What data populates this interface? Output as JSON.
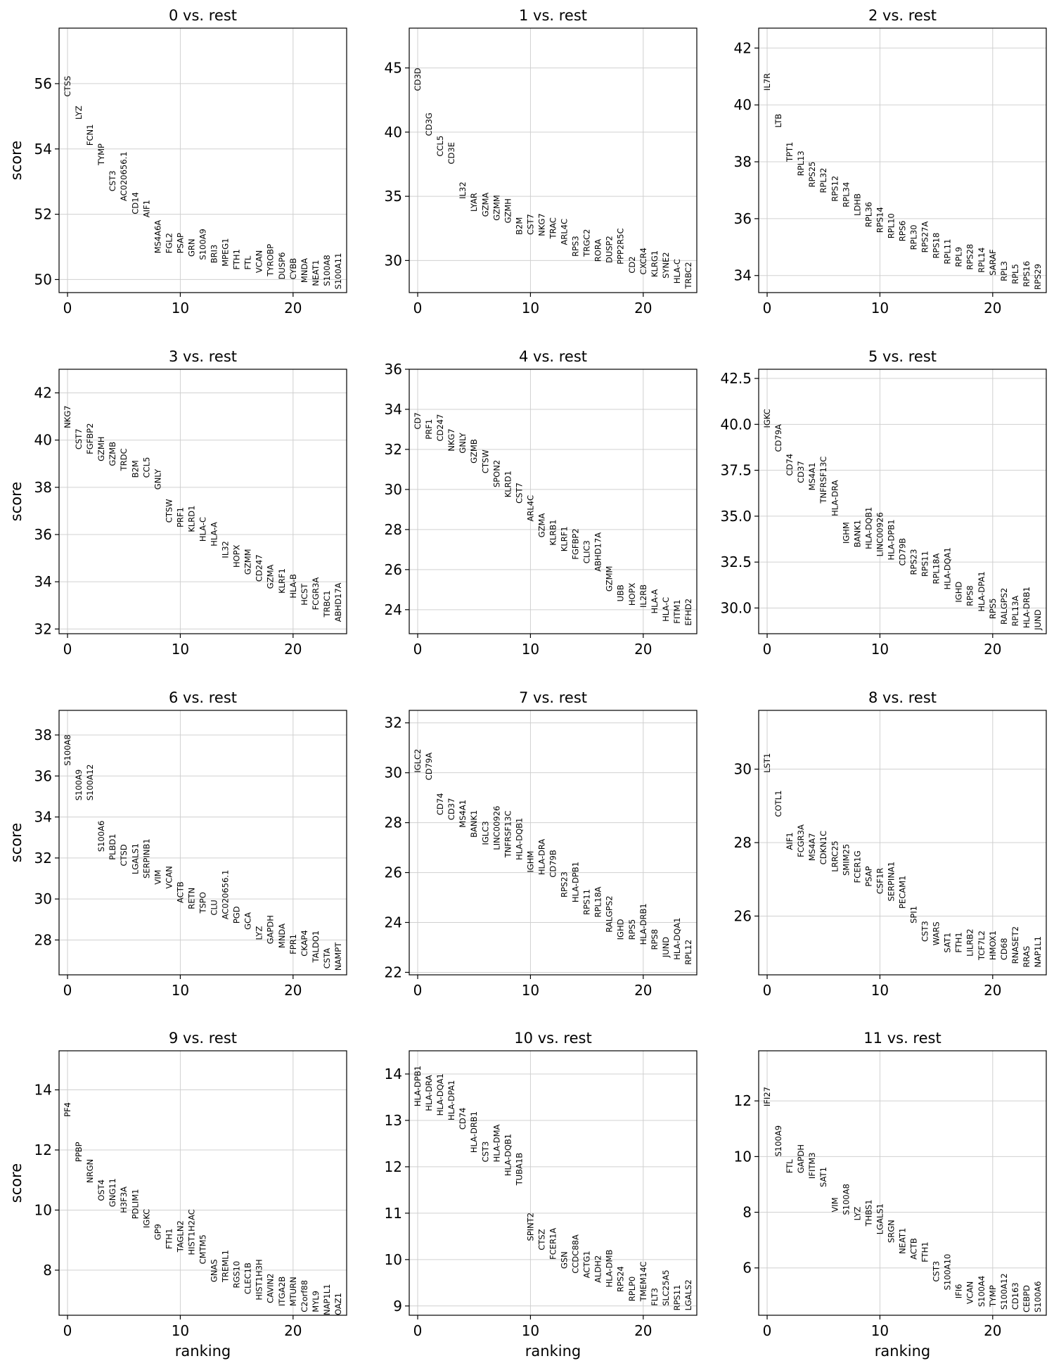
{
  "colors": {
    "grid": "#d0d0d0",
    "axis": "#000000",
    "text": "#000000",
    "background": "#ffffff"
  },
  "chart_data": [
    {
      "type": "scatter",
      "title": "0 vs. rest",
      "xlabel": "",
      "ylabel": "score",
      "xlim": [
        -0.75,
        24.75
      ],
      "ylim": [
        49.6,
        57.7
      ],
      "xticks": [
        0,
        10,
        20
      ],
      "yticks": [
        50,
        52,
        54,
        56
      ],
      "grid": true,
      "genes": [
        "CTSS",
        "LYZ",
        "FCN1",
        "TYMP",
        "CST3",
        "AC020656.1",
        "CD14",
        "AIF1",
        "MS4A6A",
        "FGL2",
        "PSAP",
        "GRN",
        "S100A9",
        "BRI3",
        "MPEG1",
        "FTH1",
        "FTL",
        "VCAN",
        "TYROBP",
        "DUSP6",
        "CYBB",
        "MNDA",
        "NEAT1",
        "S100A8",
        "S100A11"
      ],
      "scores": [
        55.6,
        54.9,
        54.1,
        53.5,
        52.7,
        52.4,
        52.0,
        51.9,
        50.8,
        50.8,
        50.8,
        50.7,
        50.6,
        50.5,
        50.4,
        50.3,
        50.3,
        50.2,
        50.1,
        50.0,
        50.0,
        49.9,
        49.8,
        49.8,
        49.7
      ]
    },
    {
      "type": "scatter",
      "title": "1 vs. rest",
      "xlabel": "",
      "ylabel": "",
      "xlim": [
        -0.75,
        24.75
      ],
      "ylim": [
        27.5,
        48.1
      ],
      "xticks": [
        0,
        10,
        20
      ],
      "yticks": [
        30,
        35,
        40,
        45
      ],
      "grid": true,
      "genes": [
        "CD3D",
        "CD3G",
        "CCL5",
        "CD3E",
        "IL32",
        "LYAR",
        "GZMA",
        "GZMM",
        "GZMH",
        "B2M",
        "CST7",
        "NKG7",
        "TRAC",
        "ARL4C",
        "RPS3",
        "TRGC2",
        "RORA",
        "DUSP2",
        "PPP2R5C",
        "CD2",
        "CXCR4",
        "KLRG1",
        "SYNE2",
        "HLA-C",
        "TRBC2"
      ],
      "scores": [
        43.2,
        39.7,
        38.1,
        37.5,
        34.8,
        33.8,
        33.4,
        33.1,
        32.9,
        32.0,
        32.0,
        31.9,
        31.7,
        31.2,
        30.3,
        30.3,
        29.9,
        29.8,
        29.7,
        29.0,
        28.9,
        28.7,
        28.6,
        28.2,
        27.8
      ]
    },
    {
      "type": "scatter",
      "title": "2 vs. rest",
      "xlabel": "",
      "ylabel": "",
      "xlim": [
        -0.75,
        24.75
      ],
      "ylim": [
        33.4,
        42.7
      ],
      "xticks": [
        0,
        10,
        20
      ],
      "yticks": [
        34,
        36,
        38,
        40,
        42
      ],
      "grid": true,
      "genes": [
        "IL7R",
        "LTB",
        "TPT1",
        "RPL13",
        "RPS25",
        "RPL32",
        "RPS12",
        "RPL34",
        "LDHB",
        "RPL36",
        "RPS14",
        "RPL10",
        "RPS6",
        "RPL30",
        "RPS27A",
        "RPS18",
        "RPL11",
        "RPL9",
        "RPS28",
        "RPL14",
        "SARAF",
        "RPL3",
        "RPL5",
        "RPS16",
        "RPS29"
      ],
      "scores": [
        40.5,
        39.2,
        38.0,
        37.5,
        37.1,
        36.9,
        36.6,
        36.4,
        36.1,
        35.7,
        35.5,
        35.3,
        35.2,
        34.9,
        34.8,
        34.6,
        34.4,
        34.3,
        34.2,
        34.1,
        34.0,
        33.8,
        33.7,
        33.6,
        33.5
      ]
    },
    {
      "type": "scatter",
      "title": "3 vs. rest",
      "xlabel": "",
      "ylabel": "score",
      "xlim": [
        -0.75,
        24.75
      ],
      "ylim": [
        31.8,
        43.0
      ],
      "xticks": [
        0,
        10,
        20
      ],
      "yticks": [
        32,
        34,
        36,
        38,
        40,
        42
      ],
      "grid": true,
      "genes": [
        "NKG7",
        "CST7",
        "FGFBP2",
        "GZMH",
        "GZMB",
        "TRDC",
        "B2M",
        "CCL5",
        "GNLY",
        "CTSW",
        "PRF1",
        "KLRD1",
        "HLA-C",
        "HLA-A",
        "IL32",
        "HOPX",
        "GZMM",
        "CD247",
        "GZMA",
        "KLRF1",
        "HLA-B",
        "HCST",
        "FCGR3A",
        "TRBC1",
        "ABHD17A"
      ],
      "scores": [
        40.5,
        39.6,
        39.4,
        39.1,
        38.9,
        38.7,
        38.4,
        38.4,
        37.9,
        36.5,
        36.3,
        36.1,
        35.7,
        35.5,
        35.0,
        34.6,
        34.3,
        34.0,
        33.7,
        33.5,
        33.3,
        33.0,
        32.8,
        32.5,
        32.3
      ]
    },
    {
      "type": "scatter",
      "title": "4 vs. rest",
      "xlabel": "",
      "ylabel": "",
      "xlim": [
        -0.75,
        24.75
      ],
      "ylim": [
        22.8,
        36.0
      ],
      "xticks": [
        0,
        10,
        20
      ],
      "yticks": [
        24,
        26,
        28,
        30,
        32,
        34,
        36
      ],
      "grid": true,
      "genes": [
        "CD7",
        "PRF1",
        "CD247",
        "NKG7",
        "GNLY",
        "GZMB",
        "CTSW",
        "SPON2",
        "KLRD1",
        "CST7",
        "ARL4C",
        "GZMA",
        "KLRB1",
        "KLRF1",
        "FGFBP2",
        "CLIC3",
        "ABHD17A",
        "GZMM",
        "UBB",
        "HOPX",
        "IL2RB",
        "HLA-A",
        "HLA-C",
        "FITM1",
        "EFHD2"
      ],
      "scores": [
        33.0,
        32.5,
        32.4,
        31.9,
        31.8,
        31.3,
        30.8,
        30.1,
        29.6,
        29.3,
        28.4,
        27.6,
        27.2,
        26.9,
        26.5,
        26.3,
        25.9,
        24.9,
        24.4,
        24.2,
        24.1,
        23.8,
        23.4,
        23.3,
        23.2
      ]
    },
    {
      "type": "scatter",
      "title": "5 vs. rest",
      "xlabel": "",
      "ylabel": "",
      "xlim": [
        -0.75,
        24.75
      ],
      "ylim": [
        28.6,
        43.0
      ],
      "xticks": [
        0,
        10,
        20
      ],
      "yticks": [
        30.0,
        32.5,
        35.0,
        37.5,
        40.0,
        42.5
      ],
      "grid": true,
      "genes": [
        "IGKC",
        "CD79A",
        "CD74",
        "CD37",
        "MS4A1",
        "TNFRSF13C",
        "HLA-DRA",
        "IGHM",
        "BANK1",
        "HLA-DQB1",
        "LINC00926",
        "HLA-DPB1",
        "CD79B",
        "RPS23",
        "RPS11",
        "RPL18A",
        "HLA-DQA1",
        "IGHD",
        "RPS8",
        "HLA-DPA1",
        "RPS5",
        "RALGPS2",
        "RPL13A",
        "HLA-DRB1",
        "JUND"
      ],
      "scores": [
        39.8,
        38.5,
        37.2,
        36.8,
        36.4,
        35.7,
        35.0,
        33.5,
        33.3,
        33.2,
        32.8,
        32.6,
        32.3,
        31.8,
        31.7,
        31.3,
        31.0,
        30.3,
        30.1,
        29.8,
        29.4,
        29.1,
        29.0,
        28.9,
        28.8
      ]
    },
    {
      "type": "scatter",
      "title": "6 vs. rest",
      "xlabel": "",
      "ylabel": "score",
      "xlim": [
        -0.75,
        24.75
      ],
      "ylim": [
        26.3,
        39.2
      ],
      "xticks": [
        0,
        10,
        20
      ],
      "yticks": [
        28,
        30,
        32,
        34,
        36,
        38
      ],
      "grid": true,
      "genes": [
        "S100A8",
        "S100A9",
        "S100A12",
        "S100A6",
        "PLBD1",
        "CTSD",
        "LGALS1",
        "SERPINB1",
        "VIM",
        "VCAN",
        "ACTB",
        "RETN",
        "TSPO",
        "CLU",
        "AC020656.1",
        "PGD",
        "GCA",
        "LYZ",
        "GAPDH",
        "MNDA",
        "FPR1",
        "CKAP4",
        "TALDO1",
        "CSTA",
        "NAMPT"
      ],
      "scores": [
        36.5,
        34.8,
        34.8,
        32.3,
        31.9,
        31.6,
        31.2,
        31.0,
        30.7,
        30.5,
        29.8,
        29.5,
        29.3,
        29.2,
        29.0,
        28.8,
        28.5,
        28.0,
        27.8,
        27.6,
        27.3,
        27.2,
        26.9,
        26.6,
        26.5
      ]
    },
    {
      "type": "scatter",
      "title": "7 vs. rest",
      "xlabel": "",
      "ylabel": "",
      "xlim": [
        -0.75,
        24.75
      ],
      "ylim": [
        21.9,
        32.5
      ],
      "xticks": [
        0,
        10,
        20
      ],
      "yticks": [
        22,
        24,
        26,
        28,
        30,
        32
      ],
      "grid": true,
      "genes": [
        "IGLC2",
        "CD79A",
        "CD74",
        "CD37",
        "MS4A1",
        "BANK1",
        "IGLC3",
        "LINC00926",
        "TNFRSF13C",
        "HLA-DQB1",
        "IGHM",
        "HLA-DRA",
        "CD79B",
        "RPS23",
        "HLA-DPB1",
        "RPS11",
        "RPL18A",
        "RALGPS2",
        "IGHD",
        "RPS5",
        "HLA-DRB1",
        "RPS8",
        "JUND",
        "HLA-DQA1",
        "RPL12"
      ],
      "scores": [
        30.0,
        29.7,
        28.3,
        28.1,
        27.8,
        27.4,
        27.1,
        26.9,
        26.6,
        26.5,
        26.0,
        25.9,
        25.8,
        25.0,
        24.8,
        24.3,
        24.2,
        23.6,
        23.3,
        23.3,
        23.1,
        22.9,
        22.6,
        22.5,
        22.3
      ]
    },
    {
      "type": "scatter",
      "title": "8 vs. rest",
      "xlabel": "",
      "ylabel": "",
      "xlim": [
        -0.75,
        24.75
      ],
      "ylim": [
        24.4,
        31.6
      ],
      "xticks": [
        0,
        10,
        20
      ],
      "yticks": [
        26,
        28,
        30
      ],
      "grid": true,
      "genes": [
        "LST1",
        "COTL1",
        "AIF1",
        "FCGR3A",
        "MS4A7",
        "CDKN1C",
        "LRRC25",
        "SMIM25",
        "FCER1G",
        "PSAP",
        "CSF1R",
        "SERPINA1",
        "PECAM1",
        "SPI1",
        "CST3",
        "WARS",
        "SAT1",
        "FTH1",
        "LILRB2",
        "TCF7L2",
        "HMOX1",
        "CD68",
        "RNASET2",
        "RRAS",
        "NAP1L1"
      ],
      "scores": [
        29.9,
        28.7,
        27.8,
        27.6,
        27.5,
        27.4,
        27.2,
        27.1,
        26.9,
        26.8,
        26.6,
        26.4,
        26.2,
        25.8,
        25.3,
        25.2,
        25.0,
        25.0,
        24.9,
        24.8,
        24.8,
        24.8,
        24.7,
        24.6,
        24.6
      ]
    },
    {
      "type": "scatter",
      "title": "9 vs. rest",
      "xlabel": "ranking",
      "ylabel": "score",
      "xlim": [
        -0.75,
        24.75
      ],
      "ylim": [
        6.5,
        15.3
      ],
      "xticks": [
        0,
        10,
        20
      ],
      "yticks": [
        8,
        10,
        12,
        14
      ],
      "grid": true,
      "genes": [
        "PF4",
        "PPBP",
        "NRGN",
        "OST4",
        "GNG11",
        "H3F3A",
        "PDLIM1",
        "IGKC",
        "GP9",
        "FTH1",
        "TAGLN2",
        "HIST1H2AC",
        "CMTM5",
        "GNAS",
        "TREML1",
        "RGS10",
        "CLEC1B",
        "HIST1H3H",
        "CAVIN2",
        "ITGA2B",
        "MTURN",
        "C2orf88",
        "MYL9",
        "NAP1L1",
        "OAZ1"
      ],
      "scores": [
        13.1,
        11.6,
        10.9,
        10.3,
        10.1,
        9.9,
        9.7,
        9.4,
        9.0,
        8.7,
        8.6,
        8.5,
        8.2,
        7.6,
        7.6,
        7.4,
        7.2,
        7.0,
        6.9,
        6.8,
        6.8,
        6.6,
        6.6,
        6.5,
        6.5
      ]
    },
    {
      "type": "scatter",
      "title": "10 vs. rest",
      "xlabel": "ranking",
      "ylabel": "",
      "xlim": [
        -0.75,
        24.75
      ],
      "ylim": [
        8.8,
        14.5
      ],
      "xticks": [
        0,
        10,
        20
      ],
      "yticks": [
        9,
        10,
        11,
        12,
        13,
        14
      ],
      "grid": true,
      "genes": [
        "HLA-DPB1",
        "HLA-DRA",
        "HLA-DQA1",
        "HLA-DPA1",
        "CD74",
        "HLA-DRB1",
        "CST3",
        "HLA-DMA",
        "HLA-DQB1",
        "TUBA1B",
        "SPINT2",
        "CTSZ",
        "FCER1A",
        "GSN",
        "CCDC88A",
        "ACTG1",
        "ALDH2",
        "HLA-DMB",
        "RPS24",
        "RPLP0",
        "TMEM14C",
        "FLT3",
        "SLC25A5",
        "RPS11",
        "LGALS2"
      ],
      "scores": [
        13.3,
        13.2,
        13.1,
        13.0,
        12.8,
        12.3,
        12.1,
        12.1,
        11.8,
        11.6,
        10.4,
        10.2,
        10.0,
        9.8,
        9.7,
        9.6,
        9.5,
        9.4,
        9.3,
        9.1,
        9.1,
        9.0,
        9.0,
        8.9,
        8.9
      ]
    },
    {
      "type": "scatter",
      "title": "11 vs. rest",
      "xlabel": "ranking",
      "ylabel": "",
      "xlim": [
        -0.75,
        24.75
      ],
      "ylim": [
        4.3,
        13.8
      ],
      "xticks": [
        0,
        10,
        20
      ],
      "yticks": [
        6,
        8,
        10,
        12
      ],
      "grid": true,
      "genes": [
        "IFI27",
        "S100A9",
        "FTL",
        "GAPDH",
        "IFITM3",
        "SAT1",
        "VIM",
        "S100A8",
        "LYZ",
        "THBS1",
        "LGALS1",
        "SRGN",
        "NEAT1",
        "ACTB",
        "FTH1",
        "CST3",
        "S100A10",
        "IFI6",
        "VCAN",
        "S100A4",
        "TYMP",
        "S100A12",
        "CD163",
        "CEBPD",
        "S100A6"
      ],
      "scores": [
        11.8,
        10.0,
        9.4,
        9.4,
        9.2,
        8.9,
        8.0,
        7.9,
        7.7,
        7.5,
        7.2,
        6.9,
        6.5,
        6.3,
        6.2,
        5.5,
        5.2,
        4.9,
        4.7,
        4.6,
        4.6,
        4.5,
        4.5,
        4.4,
        4.4
      ]
    }
  ]
}
